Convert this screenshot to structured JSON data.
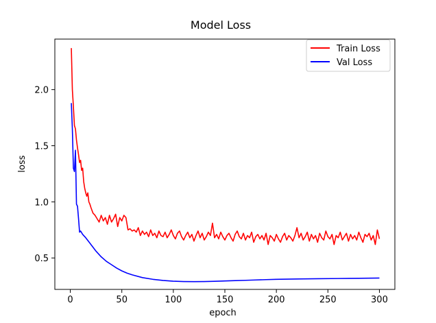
{
  "chart_data": {
    "type": "line",
    "title": "Model Loss",
    "xlabel": "epoch",
    "ylabel": "loss",
    "xlim": [
      -15,
      315
    ],
    "ylim": [
      0.22,
      2.45
    ],
    "xticks": [
      0,
      50,
      100,
      150,
      200,
      250,
      300
    ],
    "yticks": [
      0.5,
      1.0,
      1.5,
      2.0
    ],
    "xtick_labels": [
      "0",
      "50",
      "100",
      "150",
      "200",
      "250",
      "300"
    ],
    "ytick_labels": [
      "0.5",
      "1.0",
      "1.5",
      "2.0"
    ],
    "legend_position": "top-right",
    "series": [
      {
        "name": "Train Loss",
        "color": "#ff0000",
        "x": [
          1,
          2,
          3,
          4,
          5,
          6,
          7,
          8,
          9,
          10,
          11,
          12,
          13,
          14,
          15,
          16,
          17,
          18,
          19,
          20,
          22,
          24,
          26,
          28,
          30,
          32,
          34,
          36,
          38,
          40,
          42,
          44,
          46,
          48,
          50,
          52,
          54,
          56,
          58,
          60,
          62,
          64,
          66,
          68,
          70,
          72,
          74,
          76,
          78,
          80,
          82,
          84,
          86,
          88,
          90,
          92,
          94,
          96,
          98,
          100,
          102,
          104,
          106,
          108,
          110,
          112,
          114,
          116,
          118,
          120,
          122,
          124,
          126,
          128,
          130,
          132,
          134,
          136,
          138,
          140,
          142,
          144,
          146,
          148,
          150,
          152,
          154,
          156,
          158,
          160,
          162,
          164,
          166,
          168,
          170,
          172,
          174,
          176,
          178,
          180,
          182,
          184,
          186,
          188,
          190,
          192,
          194,
          196,
          198,
          200,
          202,
          204,
          206,
          208,
          210,
          212,
          214,
          216,
          218,
          220,
          222,
          224,
          226,
          228,
          230,
          232,
          234,
          236,
          238,
          240,
          242,
          244,
          246,
          248,
          250,
          252,
          254,
          256,
          258,
          260,
          262,
          264,
          266,
          268,
          270,
          272,
          274,
          276,
          278,
          280,
          282,
          284,
          286,
          288,
          290,
          292,
          294,
          296,
          298,
          300
        ],
        "values": [
          2.37,
          2.0,
          1.85,
          1.68,
          1.65,
          1.55,
          1.48,
          1.42,
          1.35,
          1.37,
          1.28,
          1.3,
          1.18,
          1.12,
          1.08,
          1.05,
          1.08,
          1.0,
          0.98,
          0.95,
          0.9,
          0.88,
          0.85,
          0.82,
          0.88,
          0.83,
          0.86,
          0.8,
          0.88,
          0.82,
          0.85,
          0.89,
          0.78,
          0.86,
          0.83,
          0.88,
          0.86,
          0.75,
          0.76,
          0.74,
          0.75,
          0.73,
          0.77,
          0.7,
          0.74,
          0.71,
          0.73,
          0.69,
          0.75,
          0.7,
          0.72,
          0.68,
          0.74,
          0.7,
          0.69,
          0.73,
          0.68,
          0.71,
          0.75,
          0.7,
          0.67,
          0.72,
          0.74,
          0.69,
          0.66,
          0.7,
          0.73,
          0.68,
          0.71,
          0.65,
          0.7,
          0.74,
          0.68,
          0.72,
          0.66,
          0.69,
          0.73,
          0.7,
          0.81,
          0.68,
          0.71,
          0.67,
          0.73,
          0.69,
          0.66,
          0.7,
          0.72,
          0.68,
          0.65,
          0.71,
          0.74,
          0.69,
          0.67,
          0.72,
          0.66,
          0.7,
          0.68,
          0.73,
          0.64,
          0.69,
          0.71,
          0.67,
          0.7,
          0.66,
          0.72,
          0.62,
          0.7,
          0.68,
          0.65,
          0.71,
          0.67,
          0.64,
          0.69,
          0.72,
          0.66,
          0.7,
          0.68,
          0.65,
          0.7,
          0.77,
          0.68,
          0.72,
          0.66,
          0.69,
          0.73,
          0.65,
          0.71,
          0.67,
          0.7,
          0.64,
          0.72,
          0.68,
          0.66,
          0.74,
          0.69,
          0.67,
          0.71,
          0.62,
          0.7,
          0.68,
          0.73,
          0.66,
          0.69,
          0.72,
          0.65,
          0.71,
          0.67,
          0.7,
          0.66,
          0.73,
          0.68,
          0.64,
          0.71,
          0.69,
          0.72,
          0.66,
          0.7,
          0.62,
          0.75,
          0.67
        ]
      },
      {
        "name": "Val Loss",
        "color": "#0000ff",
        "x": [
          1,
          2,
          3,
          4,
          5,
          6,
          7,
          8,
          9,
          10,
          12,
          15,
          20,
          25,
          30,
          35,
          40,
          45,
          50,
          55,
          60,
          70,
          80,
          90,
          100,
          110,
          120,
          130,
          140,
          150,
          160,
          170,
          180,
          190,
          200,
          220,
          240,
          260,
          280,
          300
        ],
        "values": [
          1.88,
          1.65,
          1.3,
          1.27,
          1.46,
          0.98,
          0.96,
          0.85,
          0.73,
          0.74,
          0.71,
          0.68,
          0.62,
          0.56,
          0.51,
          0.47,
          0.44,
          0.41,
          0.385,
          0.365,
          0.35,
          0.325,
          0.31,
          0.3,
          0.293,
          0.29,
          0.289,
          0.29,
          0.292,
          0.295,
          0.298,
          0.301,
          0.304,
          0.307,
          0.31,
          0.313,
          0.315,
          0.317,
          0.319,
          0.321
        ]
      }
    ]
  }
}
